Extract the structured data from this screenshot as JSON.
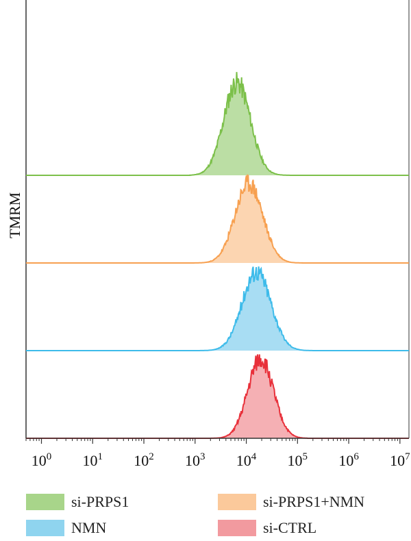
{
  "chart_data": {
    "type": "area",
    "subtype": "flow-cytometry-histogram-overlay",
    "ylabel": "TMRM",
    "xscale": "log",
    "xlim": [
      0.5,
      15000000
    ],
    "xticks": [
      {
        "base": "10",
        "exp": "0"
      },
      {
        "base": "10",
        "exp": "1"
      },
      {
        "base": "10",
        "exp": "2"
      },
      {
        "base": "10",
        "exp": "3"
      },
      {
        "base": "10",
        "exp": "4"
      },
      {
        "base": "10",
        "exp": "5"
      },
      {
        "base": "10",
        "exp": "6"
      },
      {
        "base": "10",
        "exp": "7"
      }
    ],
    "grid": false,
    "legend_position": "bottom",
    "series": [
      {
        "name": "si-PRPS1",
        "stroke": "#7cc04a",
        "fill": "#a8d58a",
        "peak_log10": 3.82,
        "sd_log10": 0.26,
        "xmin_log10": 2.9,
        "xmax_log10": 5.1,
        "seed": 11
      },
      {
        "name": "si-PRPS1+NMN",
        "stroke": "#f7a050",
        "fill": "#fbc99b",
        "peak_log10": 4.05,
        "sd_log10": 0.27,
        "xmin_log10": 2.85,
        "xmax_log10": 5.1,
        "seed": 23
      },
      {
        "name": "NMN",
        "stroke": "#3dbbea",
        "fill": "#8fd4ef",
        "peak_log10": 4.2,
        "sd_log10": 0.28,
        "xmin_log10": 2.85,
        "xmax_log10": 5.3,
        "seed": 37
      },
      {
        "name": "si-CTRL",
        "stroke": "#e8303a",
        "fill": "#f29a9f",
        "peak_log10": 4.28,
        "sd_log10": 0.25,
        "xmin_log10": 3.25,
        "xmax_log10": 5.2,
        "seed": 51
      }
    ]
  }
}
